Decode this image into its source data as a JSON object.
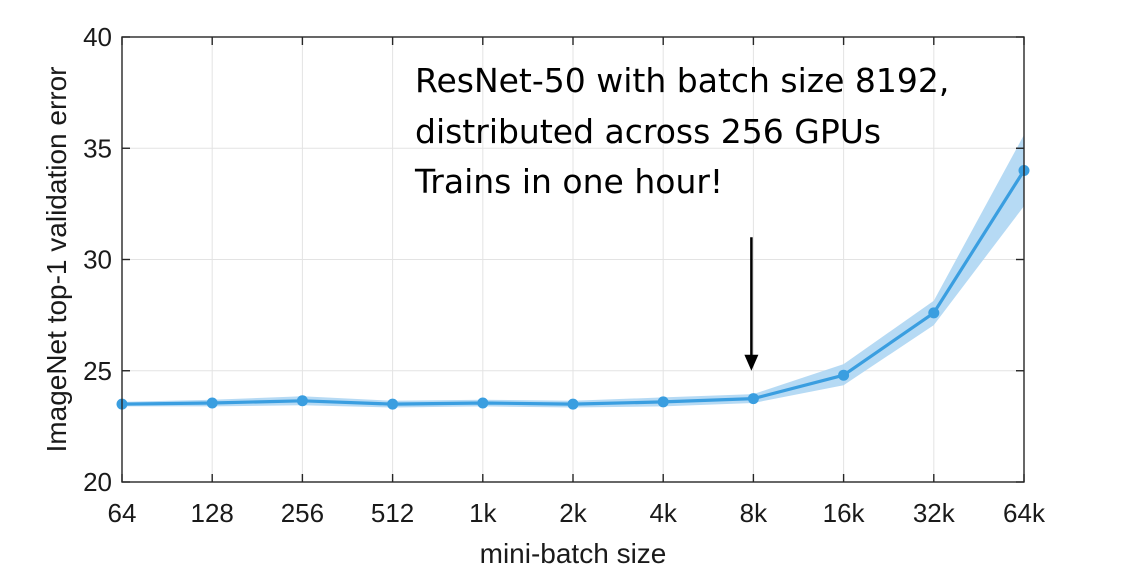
{
  "chart_data": {
    "type": "line",
    "title": "",
    "xlabel": "mini-batch size",
    "ylabel": "ImageNet top-1 validation error",
    "categories": [
      "64",
      "128",
      "256",
      "512",
      "1k",
      "2k",
      "4k",
      "8k",
      "16k",
      "32k",
      "64k"
    ],
    "x_scale": "log2",
    "ylim": [
      20,
      40
    ],
    "yticks": [
      "20",
      "25",
      "30",
      "35",
      "40"
    ],
    "grid": true,
    "legend": "none",
    "series": [
      {
        "name": "",
        "color": "#3a9ee0",
        "band_color": "#a9d3f2",
        "values": [
          23.5,
          23.55,
          23.65,
          23.5,
          23.55,
          23.5,
          23.6,
          23.75,
          24.8,
          27.6,
          34.0
        ],
        "lower": [
          23.4,
          23.4,
          23.45,
          23.35,
          23.4,
          23.35,
          23.4,
          23.55,
          24.35,
          27.05,
          32.4
        ],
        "upper": [
          23.6,
          23.7,
          23.85,
          23.65,
          23.7,
          23.65,
          23.8,
          23.95,
          25.3,
          28.15,
          35.6
        ]
      }
    ],
    "annotation": {
      "lines": [
        "ResNet-50 with batch size 8192,",
        "distributed across 256 GPUs",
        "Trains in one hour!"
      ],
      "arrow_category": "8k",
      "arrow_from_y": 31.0,
      "arrow_to_y": 25.0
    }
  }
}
